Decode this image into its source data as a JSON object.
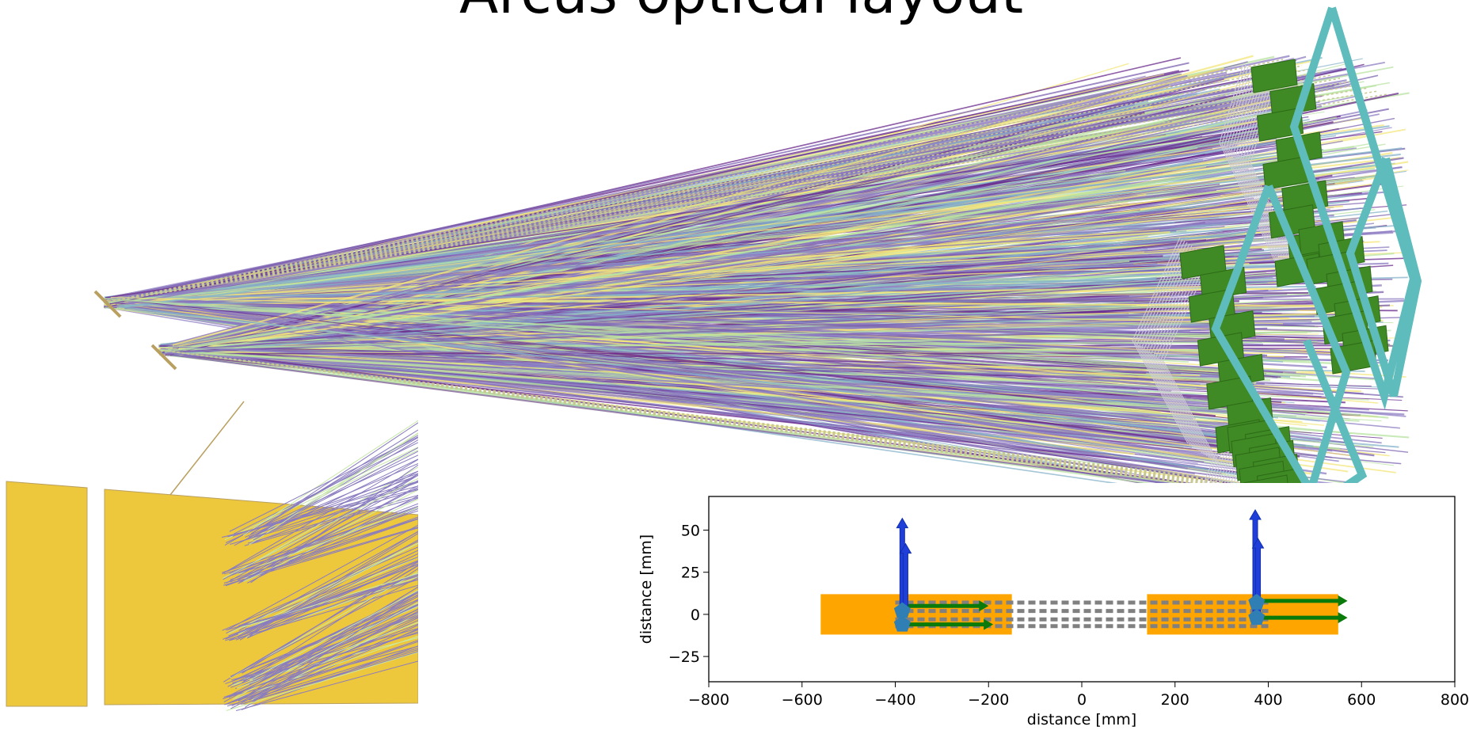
{
  "title": "Arcus optical layout",
  "chart_data": {
    "type": "layout",
    "xlabel": "distance [mm]",
    "ylabel": "distance [mm]",
    "xlim": [
      -800,
      800
    ],
    "xticks": [
      {
        "value": -800,
        "label": "−800"
      },
      {
        "value": -600,
        "label": "−600"
      },
      {
        "value": -400,
        "label": "−400"
      },
      {
        "value": -200,
        "label": "−200"
      },
      0,
      200,
      400,
      600,
      800
    ],
    "ylim": [
      -40,
      70
    ],
    "yticks": [
      {
        "value": -25,
        "label": "−25"
      },
      0,
      25,
      50
    ],
    "rects": {
      "color": "#ffa500",
      "x0": [
        -560,
        140
      ],
      "x1": [
        -150,
        550
      ],
      "y0": [
        -12,
        -12
      ],
      "y1": [
        12,
        12
      ]
    },
    "dashes": {
      "color": "#808080",
      "x0": [
        -400,
        -400,
        -400,
        -400
      ],
      "x1": [
        400,
        400,
        400,
        400
      ],
      "y": [
        7,
        2,
        -3,
        -7
      ]
    },
    "blue_arrows": {
      "color": "#1f3fd8",
      "x": [
        -385,
        -378,
        372,
        378
      ],
      "y0": [
        0,
        0,
        0,
        0
      ],
      "y1": [
        57,
        42,
        62,
        45
      ]
    },
    "green_arrows": {
      "color": "#0a7a0a",
      "x0": [
        -380,
        -380,
        375,
        375
      ],
      "x1": [
        -200,
        -190,
        570,
        570
      ],
      "y": [
        5,
        -6,
        8,
        -2
      ]
    },
    "points": {
      "color": "#2f7fb5",
      "x": [
        -385,
        -385,
        375,
        375
      ],
      "y": [
        2,
        -6,
        7,
        -2
      ]
    }
  }
}
